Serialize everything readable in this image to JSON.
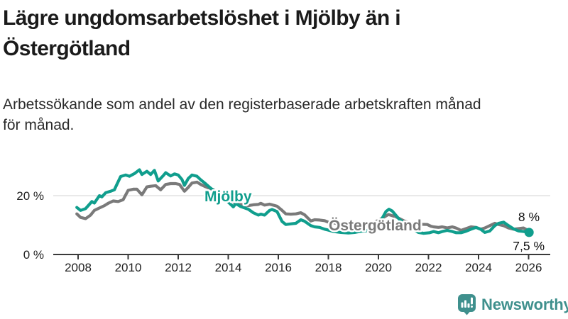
{
  "header": {
    "title_line1": "Lägre ungdomsarbetslöshet i Mjölby än i",
    "title_line2": "Östergötland",
    "subtitle_line1": "Arbetssökande som andel av den registerbaserade arbetskraften månad",
    "subtitle_line2": "för månad."
  },
  "colors": {
    "accent_teal": "#109e8d",
    "line_gray": "#7a7a7a",
    "logo_teal": "#3f908d",
    "grid_gray": "#dcdcdc",
    "axis_dark": "#3a3a3a"
  },
  "chart_data": {
    "type": "line",
    "unit": "%",
    "x_axis": {
      "ticks": [
        2008,
        2010,
        2012,
        2014,
        2016,
        2018,
        2020,
        2022,
        2024,
        2026
      ],
      "range": [
        2007.9,
        2026.4
      ]
    },
    "y_axis": {
      "ticks": [
        {
          "value": 0,
          "label": "0 %"
        },
        {
          "value": 20,
          "label": "20 %"
        }
      ],
      "gridlines": [
        20
      ],
      "range": [
        0,
        32
      ]
    },
    "legend_position": "inline-labels",
    "series": [
      {
        "name": "Mjölby",
        "color": "#109e8d",
        "end_label": "7,5 %",
        "end_value": 7.5,
        "end_dot": true,
        "points": [
          [
            2007.95,
            16.0
          ],
          [
            2008.1,
            15.0
          ],
          [
            2008.3,
            15.6
          ],
          [
            2008.55,
            18.0
          ],
          [
            2008.65,
            17.5
          ],
          [
            2008.85,
            20.0
          ],
          [
            2008.95,
            19.6
          ],
          [
            2009.1,
            21.0
          ],
          [
            2009.3,
            21.5
          ],
          [
            2009.45,
            22.0
          ],
          [
            2009.55,
            23.8
          ],
          [
            2009.7,
            26.5
          ],
          [
            2009.9,
            27.0
          ],
          [
            2010.05,
            26.6
          ],
          [
            2010.25,
            27.5
          ],
          [
            2010.45,
            28.8
          ],
          [
            2010.55,
            27.2
          ],
          [
            2010.75,
            28.3
          ],
          [
            2010.9,
            27.2
          ],
          [
            2011.05,
            28.6
          ],
          [
            2011.2,
            25.0
          ],
          [
            2011.4,
            26.8
          ],
          [
            2011.5,
            27.8
          ],
          [
            2011.7,
            26.7
          ],
          [
            2011.85,
            27.4
          ],
          [
            2012.0,
            27.0
          ],
          [
            2012.15,
            25.5
          ],
          [
            2012.25,
            23.5
          ],
          [
            2012.4,
            25.8
          ],
          [
            2012.55,
            27.0
          ],
          [
            2012.75,
            26.6
          ],
          [
            2012.9,
            25.4
          ],
          [
            2013.1,
            24.0
          ],
          [
            2013.3,
            22.5
          ],
          [
            2013.55,
            21.0
          ],
          [
            2013.8,
            19.0
          ],
          [
            2014.0,
            17.8
          ],
          [
            2014.1,
            17.0
          ],
          [
            2014.2,
            16.2
          ],
          [
            2014.3,
            17.3
          ],
          [
            2014.5,
            16.3
          ],
          [
            2014.8,
            15.4
          ],
          [
            2015.0,
            14.2
          ],
          [
            2015.2,
            13.4
          ],
          [
            2015.3,
            13.7
          ],
          [
            2015.45,
            13.4
          ],
          [
            2015.65,
            15.0
          ],
          [
            2015.75,
            15.3
          ],
          [
            2015.95,
            14.6
          ],
          [
            2016.15,
            11.2
          ],
          [
            2016.3,
            10.2
          ],
          [
            2016.5,
            10.4
          ],
          [
            2016.7,
            10.6
          ],
          [
            2016.9,
            11.8
          ],
          [
            2017.05,
            11.3
          ],
          [
            2017.3,
            9.8
          ],
          [
            2017.45,
            9.4
          ],
          [
            2017.65,
            9.2
          ],
          [
            2017.85,
            8.6
          ],
          [
            2018.0,
            8.3
          ],
          [
            2018.2,
            7.8
          ],
          [
            2018.5,
            7.5
          ],
          [
            2018.8,
            7.3
          ],
          [
            2019.05,
            7.5
          ],
          [
            2019.3,
            7.9
          ],
          [
            2019.5,
            8.0
          ],
          [
            2019.75,
            8.8
          ],
          [
            2020.05,
            10.8
          ],
          [
            2020.3,
            14.6
          ],
          [
            2020.42,
            15.4
          ],
          [
            2020.55,
            14.8
          ],
          [
            2020.8,
            12.3
          ],
          [
            2021.05,
            10.4
          ],
          [
            2021.35,
            8.8
          ],
          [
            2021.6,
            7.5
          ],
          [
            2021.8,
            7.2
          ],
          [
            2022.05,
            7.4
          ],
          [
            2022.2,
            7.8
          ],
          [
            2022.4,
            7.4
          ],
          [
            2022.55,
            7.8
          ],
          [
            2022.75,
            8.2
          ],
          [
            2022.95,
            7.8
          ],
          [
            2023.1,
            7.4
          ],
          [
            2023.3,
            7.4
          ],
          [
            2023.5,
            7.9
          ],
          [
            2023.7,
            8.6
          ],
          [
            2023.9,
            9.2
          ],
          [
            2024.1,
            8.5
          ],
          [
            2024.25,
            7.5
          ],
          [
            2024.45,
            8.0
          ],
          [
            2024.65,
            9.8
          ],
          [
            2024.8,
            10.6
          ],
          [
            2025.0,
            11.0
          ],
          [
            2025.2,
            9.8
          ],
          [
            2025.4,
            8.7
          ],
          [
            2025.6,
            8.0
          ],
          [
            2025.8,
            7.8
          ],
          [
            2026.02,
            7.5
          ]
        ]
      },
      {
        "name": "Östergötland",
        "color": "#7a7a7a",
        "end_label": "8 %",
        "end_value": 8.0,
        "end_dot": false,
        "points": [
          [
            2007.95,
            13.8
          ],
          [
            2008.1,
            12.6
          ],
          [
            2008.3,
            12.2
          ],
          [
            2008.5,
            13.4
          ],
          [
            2008.65,
            15.0
          ],
          [
            2008.85,
            15.8
          ],
          [
            2009.05,
            16.6
          ],
          [
            2009.2,
            17.4
          ],
          [
            2009.4,
            18.2
          ],
          [
            2009.6,
            18.0
          ],
          [
            2009.8,
            18.6
          ],
          [
            2010.0,
            21.8
          ],
          [
            2010.2,
            22.2
          ],
          [
            2010.35,
            22.2
          ],
          [
            2010.55,
            20.3
          ],
          [
            2010.75,
            23.0
          ],
          [
            2010.9,
            23.2
          ],
          [
            2011.1,
            23.4
          ],
          [
            2011.3,
            22.0
          ],
          [
            2011.5,
            23.8
          ],
          [
            2011.7,
            24.1
          ],
          [
            2011.9,
            24.1
          ],
          [
            2012.05,
            23.8
          ],
          [
            2012.25,
            21.5
          ],
          [
            2012.4,
            22.8
          ],
          [
            2012.55,
            24.3
          ],
          [
            2012.75,
            24.6
          ],
          [
            2012.9,
            23.8
          ],
          [
            2013.1,
            23.0
          ],
          [
            2013.4,
            22.0
          ],
          [
            2013.65,
            20.5
          ],
          [
            2013.95,
            19.0
          ],
          [
            2014.25,
            17.6
          ],
          [
            2014.5,
            17.0
          ],
          [
            2014.8,
            16.6
          ],
          [
            2015.0,
            16.9
          ],
          [
            2015.2,
            17.0
          ],
          [
            2015.3,
            17.4
          ],
          [
            2015.45,
            16.8
          ],
          [
            2015.65,
            17.1
          ],
          [
            2015.95,
            16.4
          ],
          [
            2016.15,
            15.0
          ],
          [
            2016.3,
            13.8
          ],
          [
            2016.5,
            13.7
          ],
          [
            2016.7,
            13.8
          ],
          [
            2016.9,
            14.2
          ],
          [
            2017.05,
            13.5
          ],
          [
            2017.3,
            11.4
          ],
          [
            2017.45,
            11.8
          ],
          [
            2017.65,
            11.7
          ],
          [
            2017.85,
            11.5
          ],
          [
            2018.0,
            11.0
          ],
          [
            2018.2,
            10.8
          ],
          [
            2018.5,
            10.2
          ],
          [
            2018.8,
            9.8
          ],
          [
            2019.1,
            9.9
          ],
          [
            2019.5,
            10.1
          ],
          [
            2019.8,
            10.8
          ],
          [
            2020.05,
            11.8
          ],
          [
            2020.4,
            13.6
          ],
          [
            2020.7,
            12.8
          ],
          [
            2021.0,
            11.5
          ],
          [
            2021.3,
            10.6
          ],
          [
            2021.6,
            10.3
          ],
          [
            2021.95,
            10.2
          ],
          [
            2022.1,
            9.6
          ],
          [
            2022.2,
            9.4
          ],
          [
            2022.4,
            9.2
          ],
          [
            2022.55,
            9.4
          ],
          [
            2022.75,
            9.0
          ],
          [
            2022.95,
            9.4
          ],
          [
            2023.1,
            9.0
          ],
          [
            2023.3,
            8.2
          ],
          [
            2023.5,
            8.8
          ],
          [
            2023.7,
            9.4
          ],
          [
            2023.9,
            9.2
          ],
          [
            2024.1,
            8.6
          ],
          [
            2024.25,
            9.0
          ],
          [
            2024.45,
            9.8
          ],
          [
            2024.65,
            10.6
          ],
          [
            2024.8,
            10.2
          ],
          [
            2025.0,
            9.8
          ],
          [
            2025.2,
            9.0
          ],
          [
            2025.4,
            8.6
          ],
          [
            2025.6,
            8.8
          ],
          [
            2025.8,
            9.0
          ],
          [
            2026.02,
            8.0
          ]
        ]
      }
    ]
  },
  "footer": {
    "brand": "Newsworthy"
  }
}
